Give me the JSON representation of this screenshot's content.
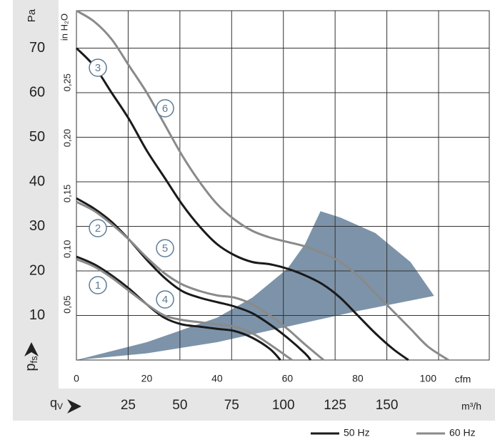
{
  "chart_data": {
    "type": "line",
    "xlabel": "cfm",
    "ylabel": "Pa",
    "y2label": "in H₂O",
    "x3label": "m³/h",
    "y_symbol": {
      "base": "p",
      "sub": "fs"
    },
    "x_symbol": {
      "base": "q",
      "sub": "V"
    },
    "xlim": [
      0,
      117.4
    ],
    "xticks": [
      0,
      20,
      40,
      60,
      80,
      100
    ],
    "ylim": [
      0,
      78.4
    ],
    "yticks": [
      10,
      20,
      30,
      40,
      50,
      60,
      70
    ],
    "y2lim": [
      0,
      0.3147
    ],
    "y2ticks": [
      {
        "value": 0.05,
        "label": "0,05"
      },
      {
        "value": 0.1,
        "label": "0,10"
      },
      {
        "value": 0.15,
        "label": "0,15"
      },
      {
        "value": 0.2,
        "label": "0,20"
      },
      {
        "value": 0.25,
        "label": "0,25"
      }
    ],
    "x3lim": [
      0,
      199.5
    ],
    "x3ticks": [
      25,
      50,
      75,
      100,
      125,
      150,
      {
        "value": 175,
        "label": null
      }
    ],
    "grid": true,
    "legend": [
      {
        "name": "50 Hz",
        "color": "#1a1a1a"
      },
      {
        "name": "60 Hz",
        "color": "#8a8a8a"
      }
    ],
    "operating_area": {
      "color": "#7d93a9",
      "x": [
        0,
        20,
        40,
        60,
        80,
        101.7,
        95,
        85,
        75,
        69.4,
        65,
        60,
        50,
        40,
        20
      ],
      "y": [
        0,
        1.5,
        4,
        7.5,
        11,
        14.4,
        22,
        28.5,
        32,
        33.4,
        26,
        20.5,
        14,
        9.5,
        4
      ]
    },
    "series": [
      {
        "name": "1",
        "color": "#1a1a1a",
        "label_x": 6.1,
        "label_y": 16.8,
        "x": [
          0,
          5,
          10,
          15,
          20,
          25,
          30,
          35,
          40,
          45,
          50,
          55,
          58
        ],
        "y": [
          23.2,
          21.5,
          19,
          16,
          12.5,
          9.5,
          8,
          7.5,
          7,
          6.5,
          5,
          2.5,
          0
        ]
      },
      {
        "name": "2",
        "color": "#1a1a1a",
        "label_x": 6.1,
        "label_y": 29.6,
        "x": [
          0,
          5,
          10,
          15,
          20,
          25,
          30,
          35,
          40,
          45,
          50,
          55,
          60,
          65,
          66.6
        ],
        "y": [
          36.3,
          34,
          31,
          27,
          22.5,
          18.5,
          15.5,
          14,
          13,
          12,
          10.5,
          8,
          5,
          1.5,
          0
        ]
      },
      {
        "name": "3",
        "color": "#1a1a1a",
        "label_x": 6.1,
        "label_y": 65.6,
        "x": [
          0,
          5,
          10,
          15,
          20,
          25,
          30,
          35,
          40,
          45,
          50,
          55,
          60,
          65,
          70,
          75,
          80,
          85,
          90,
          94.4
        ],
        "y": [
          70,
          66,
          60,
          54,
          47,
          41,
          35,
          30,
          26,
          23.5,
          22,
          21.5,
          20.5,
          19,
          17,
          14,
          10,
          6,
          2.5,
          0
        ]
      },
      {
        "name": "4",
        "color": "#8a8a8a",
        "label_x": 25.2,
        "label_y": 13.6,
        "x": [
          0,
          5,
          10,
          15,
          20,
          25,
          30,
          35,
          40,
          45,
          50,
          55,
          61.3
        ],
        "y": [
          22.6,
          21,
          18.5,
          15.5,
          12.5,
          10,
          9,
          8.5,
          8,
          7.5,
          6,
          3.5,
          0
        ]
      },
      {
        "name": "5",
        "color": "#8a8a8a",
        "label_x": 25.2,
        "label_y": 25.1,
        "x": [
          0,
          5,
          10,
          15,
          20,
          25,
          30,
          35,
          40,
          45,
          50,
          55,
          60,
          65,
          70.3
        ],
        "y": [
          35.5,
          33.5,
          30.5,
          27,
          23,
          19.5,
          17,
          15.5,
          14.5,
          14,
          12.5,
          10,
          7,
          3.5,
          0
        ]
      },
      {
        "name": "6",
        "color": "#8a8a8a",
        "label_x": 25.2,
        "label_y": 56.5,
        "x": [
          0,
          5,
          10,
          15,
          20,
          25,
          30,
          35,
          40,
          45,
          50,
          55,
          60,
          65,
          70,
          75,
          80,
          85,
          90,
          95,
          100,
          105.8
        ],
        "y": [
          78.4,
          76,
          72,
          66,
          60,
          53,
          46,
          40,
          35,
          31.5,
          29,
          27.5,
          26.5,
          25.5,
          24,
          22,
          19,
          15,
          11,
          7,
          3,
          0
        ]
      }
    ]
  }
}
